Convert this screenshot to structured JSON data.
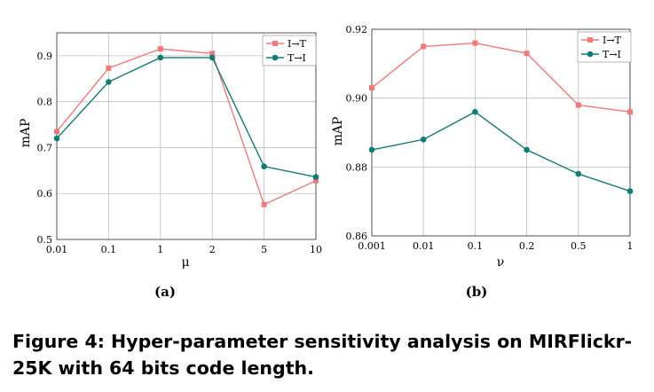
{
  "caption": "Figure 4: Hyper-parameter sensitivity analysis on MIRFlickr-25K with 64 bits code length.",
  "colors": {
    "i2t": "#f07a7a",
    "t2i": "#0f7b72",
    "grid": "#bfbfbf",
    "axis": "#444444"
  },
  "chart_data": [
    {
      "type": "line",
      "panel_label": "(a)",
      "xlabel": "μ",
      "ylabel": "mAP",
      "categories": [
        "0.01",
        "0.1",
        "1",
        "2",
        "5",
        "10"
      ],
      "yticks": [
        "0.5",
        "0.6",
        "0.7",
        "0.8",
        "0.9"
      ],
      "ylim": [
        0.5,
        0.95
      ],
      "grid": true,
      "legend": "top-right",
      "series": [
        {
          "name": "I→T",
          "marker": "square",
          "color": "#f07a7a",
          "values": [
            0.735,
            0.873,
            0.915,
            0.905,
            0.576,
            0.628
          ]
        },
        {
          "name": "T→I",
          "marker": "circle",
          "color": "#0f7b72",
          "values": [
            0.72,
            0.843,
            0.896,
            0.896,
            0.659,
            0.636
          ]
        }
      ]
    },
    {
      "type": "line",
      "panel_label": "(b)",
      "xlabel": "ν",
      "ylabel": "mAP",
      "categories": [
        "0.001",
        "0.01",
        "0.1",
        "0.2",
        "0.5",
        "1"
      ],
      "yticks": [
        "0.86",
        "0.88",
        "0.90",
        "0.92"
      ],
      "ylim": [
        0.86,
        0.92
      ],
      "grid": true,
      "legend": "top-right",
      "series": [
        {
          "name": "I→T",
          "marker": "square",
          "color": "#f07a7a",
          "values": [
            0.903,
            0.915,
            0.916,
            0.913,
            0.898,
            0.896
          ]
        },
        {
          "name": "T→I",
          "marker": "circle",
          "color": "#0f7b72",
          "values": [
            0.885,
            0.888,
            0.896,
            0.885,
            0.878,
            0.873
          ]
        }
      ]
    }
  ]
}
